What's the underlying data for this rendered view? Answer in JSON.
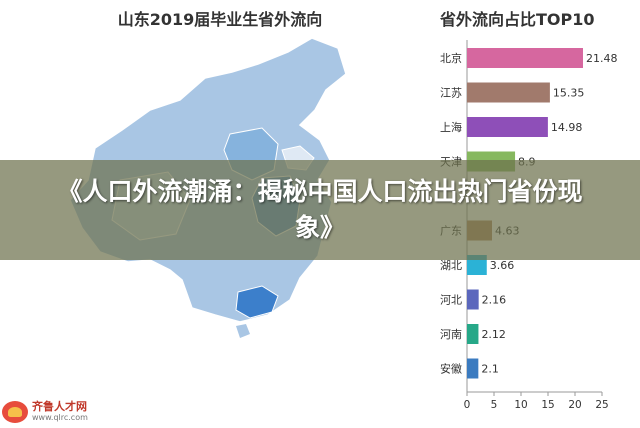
{
  "map": {
    "title": "山东2019届毕业生省外流向"
  },
  "chart_data": {
    "type": "bar",
    "title": "省外流向占比TOP10",
    "categories": [
      "北京",
      "江苏",
      "上海",
      "天津",
      "",
      "广东",
      "湖北",
      "河北",
      "河南",
      "安徽"
    ],
    "values": [
      21.48,
      15.35,
      14.98,
      8.9,
      null,
      4.63,
      3.66,
      2.16,
      2.12,
      2.1
    ],
    "value_labels": [
      "21.48",
      "15.35",
      "14.98",
      "8.9",
      "",
      "4.63",
      "3.66",
      "2.16",
      "2.12",
      "2.1"
    ],
    "colors": [
      "#d6679f",
      "#a17a6c",
      "#8e4fb8",
      "#86b85f",
      "#b07e5a",
      "#b0855d",
      "#2bb2d6",
      "#5b67bd",
      "#26a888",
      "#3b7bc0"
    ],
    "xlim": [
      0,
      25
    ],
    "xticks": [
      "0",
      "5",
      "10",
      "15",
      "20",
      "25"
    ],
    "xlabel": "",
    "ylabel": ""
  },
  "banner": {
    "text": "《人口外流潮涌：揭秘中国人口流出热门省份现象》"
  },
  "watermark": {
    "name": "齐鲁人才网",
    "url": "www.qlrc.com"
  }
}
